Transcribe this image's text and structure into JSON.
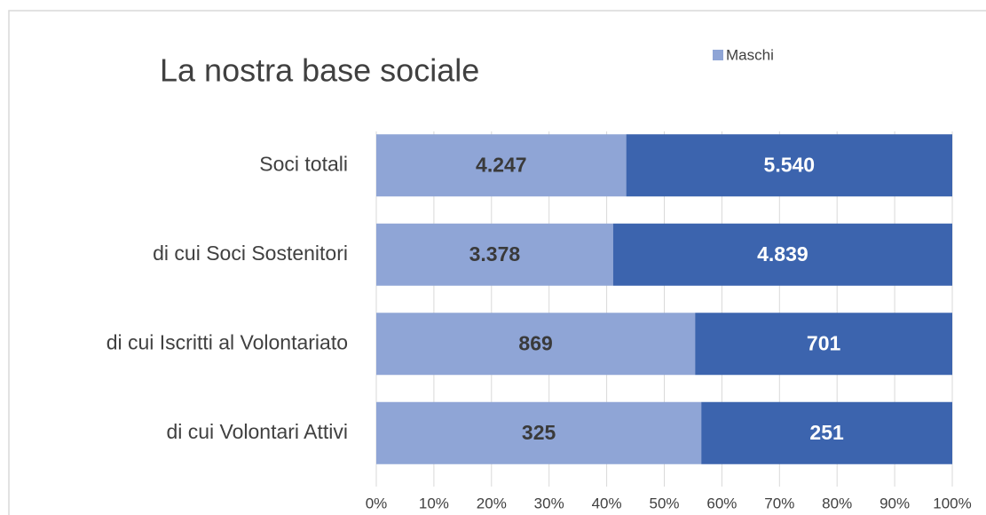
{
  "chart_data": {
    "type": "stacked-bar-100",
    "orientation": "horizontal",
    "title": "La nostra base sociale",
    "categories": [
      "Soci totali",
      "di cui Soci Sostenitori",
      "di cui Iscritti al Volontariato",
      "di cui Volontari Attivi"
    ],
    "series": [
      {
        "name": "Maschi",
        "color": "#8fa5d6",
        "values": [
          4247,
          3378,
          869,
          325
        ],
        "value_labels": [
          "4.247",
          "3.378",
          "869",
          "325"
        ]
      },
      {
        "color": "#3c64ae",
        "values": [
          5540,
          4839,
          701,
          251
        ],
        "value_labels": [
          "5.540",
          "4.839",
          "701",
          "251"
        ]
      }
    ],
    "xlim": [
      0,
      100
    ],
    "xticks": [
      {
        "value": 0,
        "label": "0%"
      },
      {
        "value": 10,
        "label": "10%"
      },
      {
        "value": 20,
        "label": "20%"
      },
      {
        "value": 30,
        "label": "30%"
      },
      {
        "value": 40,
        "label": "40%"
      },
      {
        "value": 50,
        "label": "50%"
      },
      {
        "value": 60,
        "label": "60%"
      },
      {
        "value": 70,
        "label": "70%"
      },
      {
        "value": 80,
        "label": "80%"
      },
      {
        "value": 90,
        "label": "90%"
      },
      {
        "value": 100,
        "label": "100%"
      }
    ],
    "grid": true,
    "legend": "top"
  }
}
